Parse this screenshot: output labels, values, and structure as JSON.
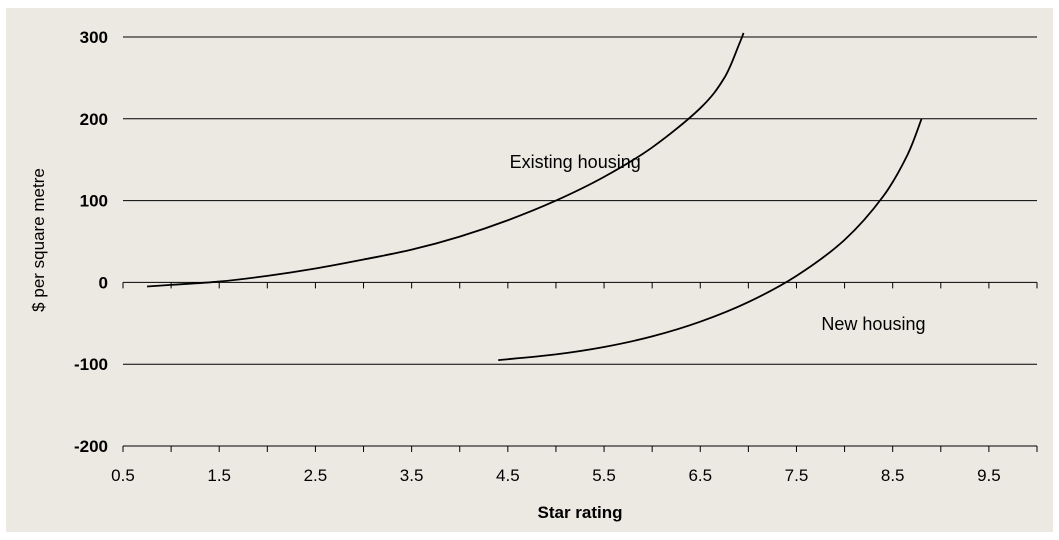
{
  "chart_data": {
    "type": "line",
    "xlabel": "Star rating",
    "ylabel": "$ per square metre",
    "xlim": [
      0.5,
      10.0
    ],
    "ylim": [
      -200,
      300
    ],
    "x_ticks": [
      "0.5",
      "1.5",
      "2.5",
      "3.5",
      "4.5",
      "5.5",
      "6.5",
      "7.5",
      "8.5",
      "9.5"
    ],
    "y_ticks": [
      "300",
      "200",
      "100",
      "0",
      "-100",
      "-200"
    ],
    "grid": "horizontal",
    "colors": {
      "background": "#ECE9E2",
      "line": "#000000",
      "grid": "#000000"
    },
    "series": [
      {
        "name": "Existing housing",
        "points": [
          [
            0.75,
            -5
          ],
          [
            1.0,
            -3
          ],
          [
            1.5,
            1
          ],
          [
            2.0,
            8
          ],
          [
            2.5,
            17
          ],
          [
            3.0,
            28
          ],
          [
            3.5,
            40
          ],
          [
            4.0,
            56
          ],
          [
            4.5,
            76
          ],
          [
            5.0,
            100
          ],
          [
            5.5,
            129
          ],
          [
            6.0,
            165
          ],
          [
            6.5,
            213
          ],
          [
            6.75,
            250
          ],
          [
            6.9,
            290
          ],
          [
            6.95,
            305
          ]
        ]
      },
      {
        "name": "New housing",
        "points": [
          [
            4.4,
            -95
          ],
          [
            5.0,
            -88
          ],
          [
            5.5,
            -79
          ],
          [
            6.0,
            -66
          ],
          [
            6.5,
            -48
          ],
          [
            7.0,
            -24
          ],
          [
            7.5,
            8
          ],
          [
            8.0,
            52
          ],
          [
            8.4,
            105
          ],
          [
            8.65,
            155
          ],
          [
            8.8,
            200
          ]
        ]
      }
    ],
    "annotations": [
      {
        "text": "Existing housing",
        "x": 5.2,
        "y": 140
      },
      {
        "text": "New housing",
        "x": 8.3,
        "y": -58
      }
    ]
  }
}
